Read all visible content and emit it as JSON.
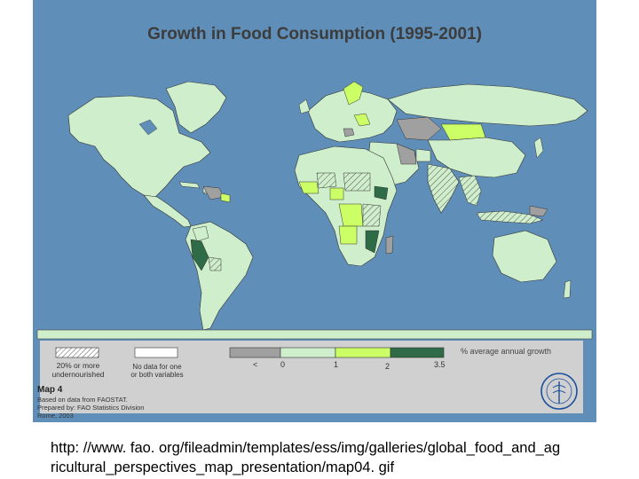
{
  "map": {
    "title": "Growth in Food Consumption (1995-2001)",
    "colors": {
      "ocean": "#5f8fb8",
      "land": "#cfeecb",
      "low_growth": "#a0a0a0",
      "mid_growth": "#ccff66",
      "high_growth": "#2e6b46",
      "no_data": "#ffffff"
    }
  },
  "legend": {
    "undernourished_label": "20% or more undernourished",
    "no_data_label": "No data for one or both variables",
    "scale_title": "% average annual growth",
    "scale_ticks": [
      "<",
      "0",
      "1",
      "2",
      "3.5"
    ],
    "map_number": "Map 4",
    "source_line1": "Based on data from FAOSTAT.",
    "source_line2": "Prepared by: FAO Statistics Division",
    "source_line3": "Rome, 2003"
  },
  "logo": {
    "text": "FAO"
  },
  "caption": {
    "line1": "http: //www. fao. org/fileadmin/templates/ess/img/galleries/global_food_and_ag",
    "line2": "ricultural_perspectives_map_presentation/map04. gif"
  }
}
